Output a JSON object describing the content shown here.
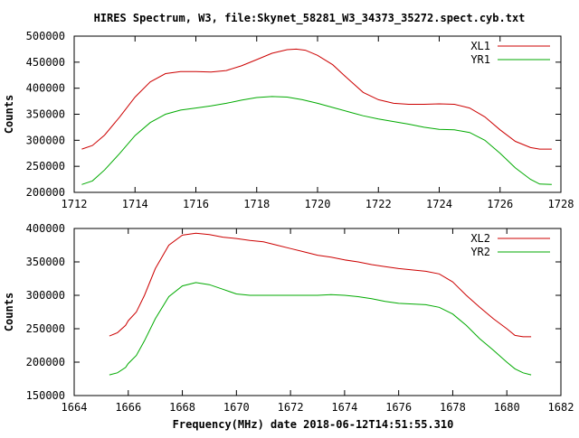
{
  "colors": {
    "xl": "#cc0000",
    "yr": "#00aa00",
    "frame": "#000000",
    "background": "#ffffff"
  },
  "title": "HIRES Spectrum, W3, file:Skynet_58281_W3_34373_35272.spect.cyb.txt",
  "xlabel": "Frequency(MHz) date 2018-06-12T14:51:55.310",
  "chart_data": [
    {
      "type": "line",
      "ylabel": "Counts",
      "xlim": [
        1712,
        1728
      ],
      "ylim": [
        200000,
        500000
      ],
      "xticks": [
        1712,
        1714,
        1716,
        1718,
        1720,
        1722,
        1724,
        1726,
        1728
      ],
      "yticks": [
        200000,
        250000,
        300000,
        350000,
        400000,
        450000,
        500000
      ],
      "legend_position": "top-right",
      "grid": false,
      "series": [
        {
          "name": "XL1",
          "color": "#cc0000",
          "x": [
            1712.25,
            1712.6,
            1713.0,
            1713.5,
            1714.0,
            1714.5,
            1715.0,
            1715.5,
            1716.0,
            1716.5,
            1717.0,
            1717.5,
            1718.0,
            1718.5,
            1719.0,
            1719.3,
            1719.6,
            1720.0,
            1720.5,
            1721.0,
            1721.5,
            1722.0,
            1722.5,
            1723.0,
            1723.5,
            1724.0,
            1724.5,
            1725.0,
            1725.5,
            1726.0,
            1726.5,
            1727.0,
            1727.3,
            1727.7
          ],
          "y": [
            283000,
            290000,
            310000,
            345000,
            383000,
            412000,
            428000,
            432000,
            432000,
            431000,
            434000,
            443000,
            455000,
            467000,
            474000,
            475000,
            473000,
            463000,
            445000,
            418000,
            392000,
            378000,
            371000,
            369000,
            369000,
            370000,
            369000,
            362000,
            345000,
            320000,
            298000,
            286000,
            283000,
            283000
          ]
        },
        {
          "name": "YR1",
          "color": "#00aa00",
          "x": [
            1712.25,
            1712.6,
            1713.0,
            1713.5,
            1714.0,
            1714.5,
            1715.0,
            1715.5,
            1716.0,
            1716.5,
            1717.0,
            1717.5,
            1718.0,
            1718.5,
            1719.0,
            1719.5,
            1720.0,
            1720.5,
            1721.0,
            1721.5,
            1722.0,
            1722.5,
            1723.0,
            1723.5,
            1724.0,
            1724.5,
            1725.0,
            1725.5,
            1726.0,
            1726.5,
            1727.0,
            1727.3,
            1727.7
          ],
          "y": [
            215000,
            222000,
            243000,
            275000,
            309000,
            334000,
            350000,
            358000,
            362000,
            366000,
            371000,
            377000,
            382000,
            384000,
            383000,
            378000,
            371000,
            363000,
            355000,
            347000,
            341000,
            336000,
            331000,
            325000,
            321000,
            320000,
            315000,
            300000,
            275000,
            247000,
            225000,
            216000,
            215000
          ]
        }
      ]
    },
    {
      "type": "line",
      "ylabel": "Counts",
      "xlim": [
        1664,
        1682
      ],
      "ylim": [
        150000,
        400000
      ],
      "xticks": [
        1664,
        1666,
        1668,
        1670,
        1672,
        1674,
        1676,
        1678,
        1680,
        1682
      ],
      "yticks": [
        150000,
        200000,
        250000,
        300000,
        350000,
        400000
      ],
      "legend_position": "top-right",
      "grid": false,
      "series": [
        {
          "name": "XL2",
          "color": "#cc0000",
          "x": [
            1665.3,
            1665.6,
            1665.9,
            1666.0,
            1666.3,
            1666.6,
            1667.0,
            1667.5,
            1668.0,
            1668.5,
            1669.0,
            1669.5,
            1670.0,
            1670.5,
            1671.0,
            1671.5,
            1672.0,
            1672.5,
            1673.0,
            1673.5,
            1674.0,
            1674.5,
            1675.0,
            1675.5,
            1676.0,
            1676.5,
            1677.0,
            1677.5,
            1678.0,
            1678.5,
            1679.0,
            1679.5,
            1680.0,
            1680.3,
            1680.6,
            1680.9
          ],
          "y": [
            239000,
            244000,
            255000,
            262000,
            275000,
            300000,
            340000,
            375000,
            390000,
            393000,
            391000,
            387000,
            385000,
            382000,
            380000,
            375000,
            370000,
            365000,
            360000,
            357000,
            353000,
            350000,
            346000,
            343000,
            340000,
            338000,
            336000,
            332000,
            320000,
            300000,
            282000,
            265000,
            250000,
            240000,
            238000,
            238000
          ]
        },
        {
          "name": "YR2",
          "color": "#00aa00",
          "x": [
            1665.3,
            1665.6,
            1665.9,
            1666.0,
            1666.3,
            1666.6,
            1667.0,
            1667.5,
            1668.0,
            1668.5,
            1669.0,
            1669.5,
            1670.0,
            1670.5,
            1671.0,
            1671.5,
            1672.0,
            1672.5,
            1673.0,
            1673.5,
            1674.0,
            1674.5,
            1675.0,
            1675.5,
            1676.0,
            1676.5,
            1677.0,
            1677.5,
            1678.0,
            1678.5,
            1679.0,
            1679.5,
            1680.0,
            1680.3,
            1680.6,
            1680.9
          ],
          "y": [
            181000,
            184000,
            192000,
            198000,
            210000,
            232000,
            265000,
            298000,
            314000,
            319000,
            316000,
            309000,
            302000,
            300000,
            300000,
            300000,
            300000,
            300000,
            300000,
            301000,
            300000,
            298000,
            295000,
            291000,
            288000,
            287000,
            286000,
            282000,
            272000,
            255000,
            235000,
            218000,
            200000,
            190000,
            184000,
            181000
          ]
        }
      ]
    }
  ]
}
